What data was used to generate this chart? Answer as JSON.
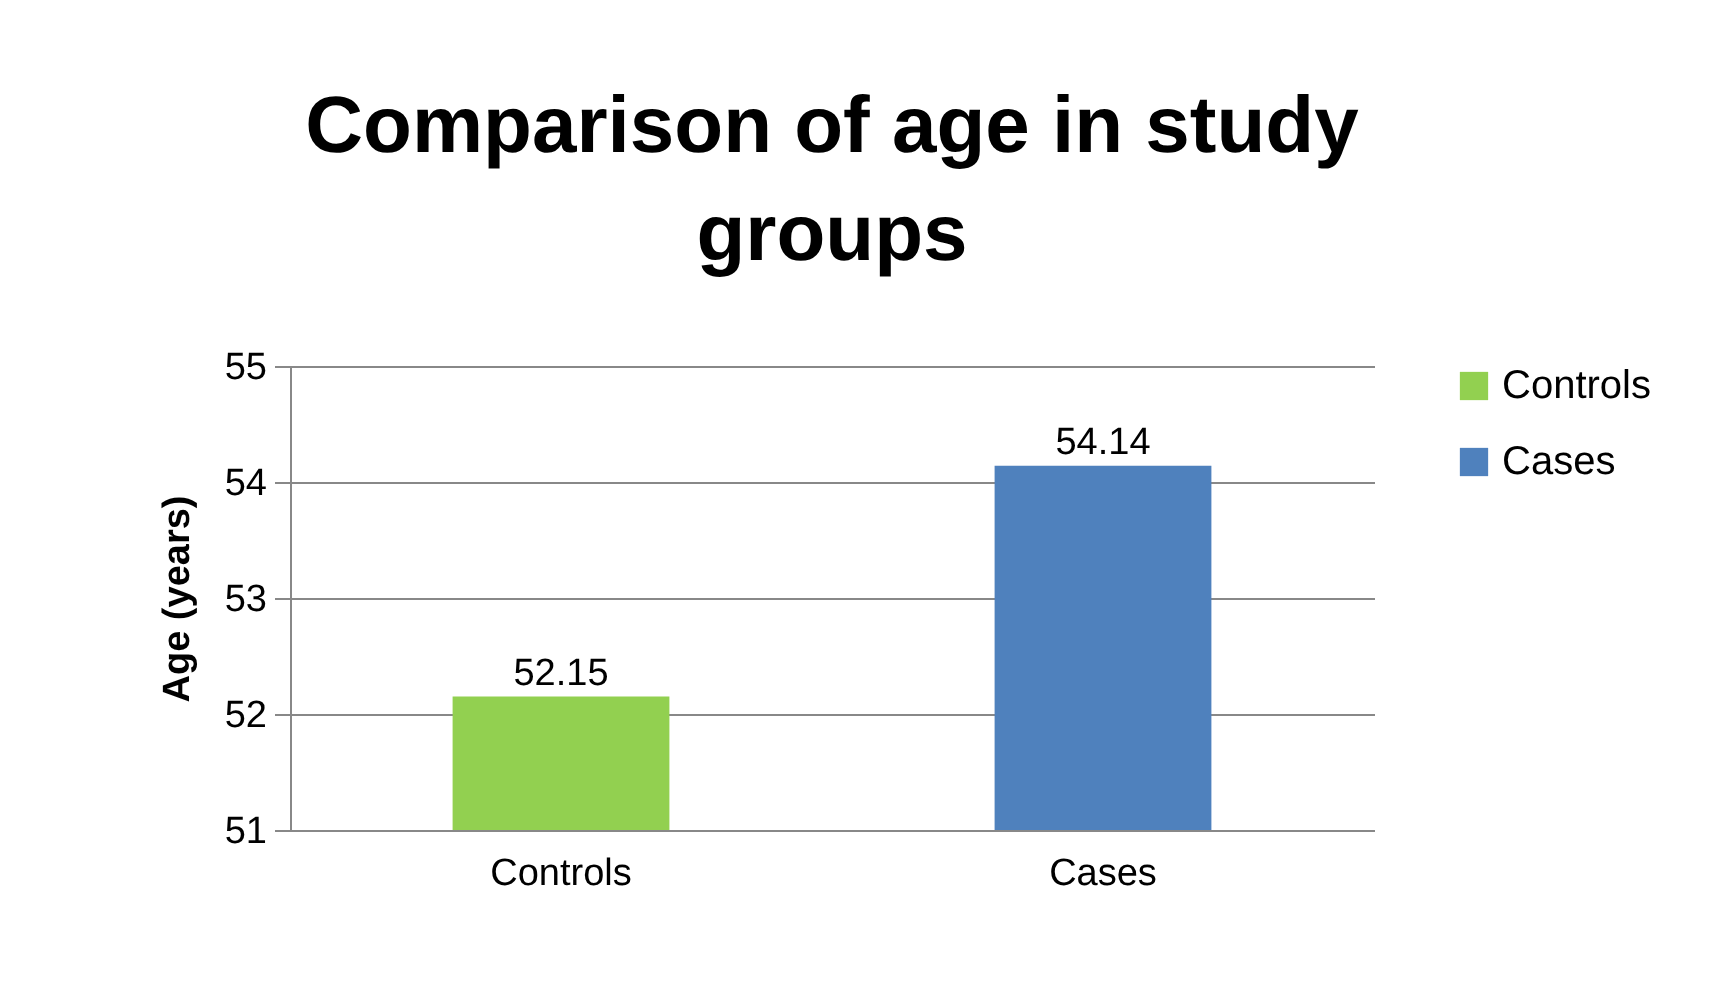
{
  "chart_data": {
    "type": "bar",
    "title": "Comparison of age in study groups",
    "ylabel": "Age (years)",
    "categories": [
      "Controls",
      "Cases"
    ],
    "series": [
      {
        "name": "Controls",
        "color": "#92d050",
        "values": [
          52.15,
          null
        ]
      },
      {
        "name": "Cases",
        "color": "#4f81bd",
        "values": [
          null,
          54.14
        ]
      }
    ],
    "stacked": true,
    "ylim": [
      51,
      55
    ],
    "yticks": [
      51,
      52,
      53,
      54,
      55
    ],
    "grid": "y",
    "legend": "right",
    "data_labels": true
  }
}
